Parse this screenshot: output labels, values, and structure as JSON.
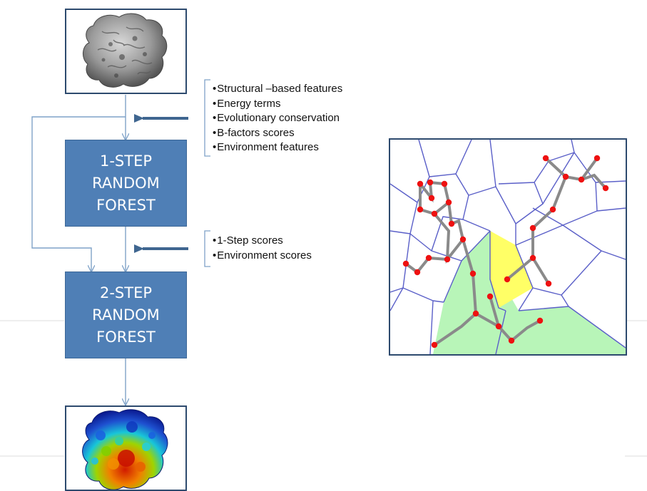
{
  "step1": {
    "line1": "1-STEP",
    "line2": "RANDOM",
    "line3": "FOREST"
  },
  "step2": {
    "line1": "2-STEP",
    "line2": "RANDOM",
    "line3": "FOREST"
  },
  "features_step1": [
    "Structural –based features",
    "Energy terms",
    "Evolutionary conservation",
    "B-factors scores",
    "Environment features"
  ],
  "features_step2": [
    "1-Step scores",
    "Environment scores"
  ],
  "colors": {
    "box_fill": "#4f7fb6",
    "frame_border": "#2d4a6e",
    "arrow": "#7fa2c8",
    "big_arrow": "#3f6690",
    "voronoi_edge": "#5a5fc8",
    "region_green": "#b8f5b8",
    "region_yellow": "#ffff66",
    "atom": "#ee1111",
    "bond": "#888888"
  }
}
